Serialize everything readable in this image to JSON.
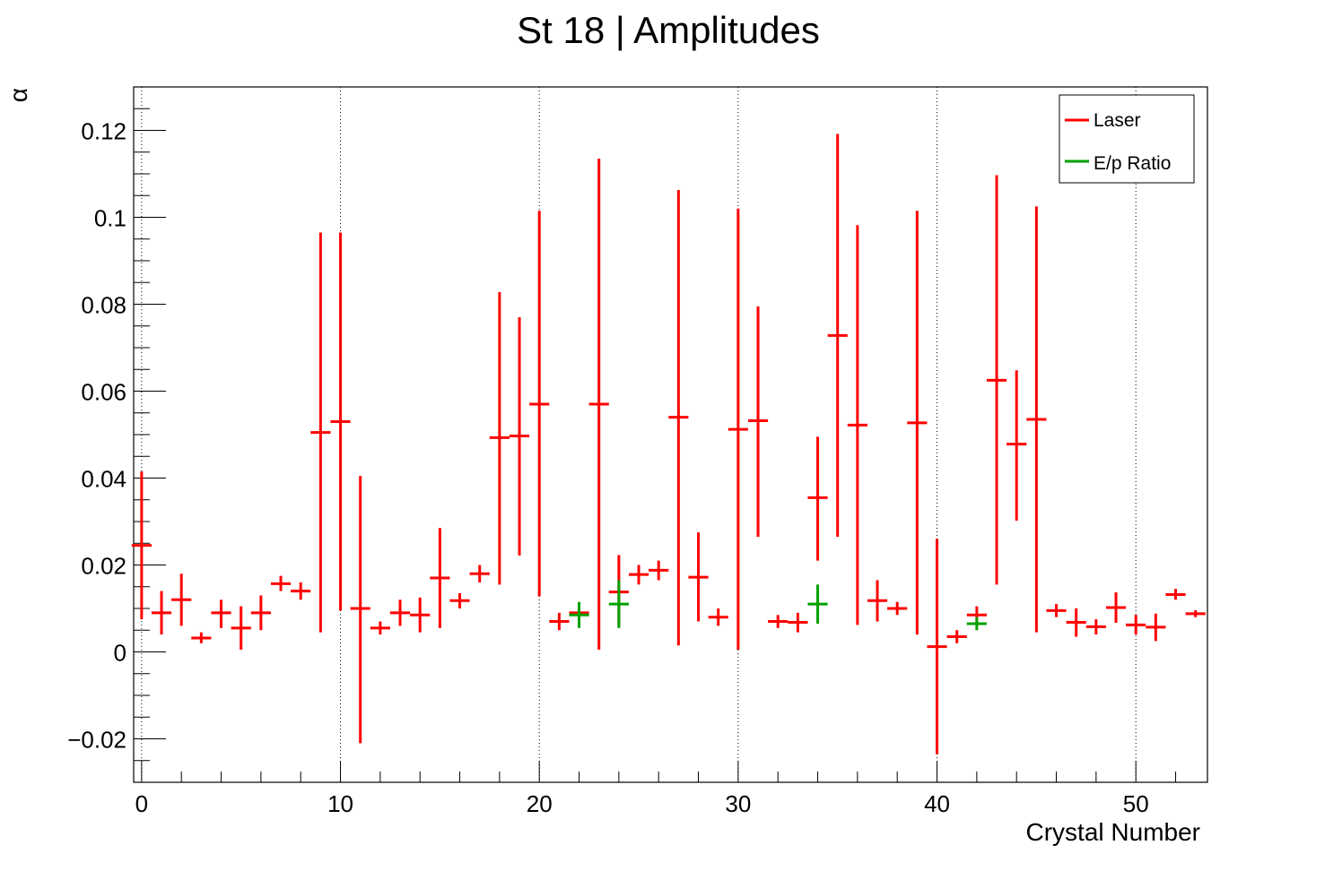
{
  "chart_data": {
    "type": "scatter",
    "title": "St 18 | Amplitudes",
    "xlabel": "Crystal Number",
    "ylabel": "α",
    "xlim": [
      -0.4,
      53.6
    ],
    "ylim": [
      -0.03,
      0.13
    ],
    "xticks": [
      0,
      10,
      20,
      30,
      40,
      50
    ],
    "yticks": [
      -0.02,
      0,
      0.02,
      0.04,
      0.06,
      0.08,
      0.1,
      0.12
    ],
    "xtick_labels": [
      "0",
      "10",
      "20",
      "30",
      "40",
      "50"
    ],
    "ytick_labels": [
      "−0.02",
      "0",
      "0.02",
      "0.04",
      "0.06",
      "0.08",
      "0.1",
      "0.12"
    ],
    "grid": "vertical-dotted",
    "legend": {
      "position": "top-right",
      "entries": [
        "Laser",
        "E/p Ratio"
      ]
    },
    "colors": {
      "Laser": "#ff0000",
      "E/p Ratio": "#00a000"
    },
    "series": [
      {
        "name": "Laser",
        "color": "#ff0000",
        "points": [
          {
            "x": 0,
            "y": 0.0245,
            "lo": 0.0075,
            "hi": 0.0415
          },
          {
            "x": 1,
            "y": 0.009,
            "lo": 0.004,
            "hi": 0.014
          },
          {
            "x": 2,
            "y": 0.012,
            "lo": 0.006,
            "hi": 0.018
          },
          {
            "x": 3,
            "y": 0.0032,
            "lo": 0.002,
            "hi": 0.0045
          },
          {
            "x": 4,
            "y": 0.009,
            "lo": 0.0055,
            "hi": 0.012
          },
          {
            "x": 5,
            "y": 0.0055,
            "lo": 0.0005,
            "hi": 0.0105
          },
          {
            "x": 6,
            "y": 0.009,
            "lo": 0.005,
            "hi": 0.013
          },
          {
            "x": 7,
            "y": 0.0157,
            "lo": 0.014,
            "hi": 0.0175
          },
          {
            "x": 8,
            "y": 0.014,
            "lo": 0.012,
            "hi": 0.016
          },
          {
            "x": 9,
            "y": 0.0505,
            "lo": 0.0045,
            "hi": 0.0965
          },
          {
            "x": 10,
            "y": 0.053,
            "lo": 0.0095,
            "hi": 0.0965
          },
          {
            "x": 11,
            "y": 0.01,
            "lo": -0.021,
            "hi": 0.0405
          },
          {
            "x": 12,
            "y": 0.0055,
            "lo": 0.004,
            "hi": 0.007
          },
          {
            "x": 13,
            "y": 0.009,
            "lo": 0.006,
            "hi": 0.012
          },
          {
            "x": 14,
            "y": 0.0085,
            "lo": 0.0045,
            "hi": 0.0125
          },
          {
            "x": 15,
            "y": 0.017,
            "lo": 0.0055,
            "hi": 0.0285
          },
          {
            "x": 16,
            "y": 0.0118,
            "lo": 0.01,
            "hi": 0.0135
          },
          {
            "x": 17,
            "y": 0.018,
            "lo": 0.016,
            "hi": 0.02
          },
          {
            "x": 18,
            "y": 0.0493,
            "lo": 0.0155,
            "hi": 0.0828
          },
          {
            "x": 19,
            "y": 0.0497,
            "lo": 0.0222,
            "hi": 0.077
          },
          {
            "x": 20,
            "y": 0.057,
            "lo": 0.0128,
            "hi": 0.1015
          },
          {
            "x": 21,
            "y": 0.007,
            "lo": 0.005,
            "hi": 0.009
          },
          {
            "x": 22,
            "y": 0.009,
            "lo": 0.0075,
            "hi": 0.0105
          },
          {
            "x": 23,
            "y": 0.057,
            "lo": 0.0005,
            "hi": 0.1135
          },
          {
            "x": 24,
            "y": 0.0138,
            "lo": 0.006,
            "hi": 0.0223
          },
          {
            "x": 25,
            "y": 0.0178,
            "lo": 0.0155,
            "hi": 0.02
          },
          {
            "x": 26,
            "y": 0.0188,
            "lo": 0.0165,
            "hi": 0.021
          },
          {
            "x": 27,
            "y": 0.054,
            "lo": 0.0015,
            "hi": 0.1063
          },
          {
            "x": 28,
            "y": 0.0172,
            "lo": 0.007,
            "hi": 0.0275
          },
          {
            "x": 29,
            "y": 0.008,
            "lo": 0.006,
            "hi": 0.01
          },
          {
            "x": 30,
            "y": 0.0512,
            "lo": 0.0005,
            "hi": 0.102
          },
          {
            "x": 31,
            "y": 0.0532,
            "lo": 0.0265,
            "hi": 0.0795
          },
          {
            "x": 32,
            "y": 0.007,
            "lo": 0.0055,
            "hi": 0.0085
          },
          {
            "x": 33,
            "y": 0.0068,
            "lo": 0.0045,
            "hi": 0.009
          },
          {
            "x": 34,
            "y": 0.0355,
            "lo": 0.021,
            "hi": 0.0495
          },
          {
            "x": 35,
            "y": 0.0728,
            "lo": 0.0265,
            "hi": 0.1192
          },
          {
            "x": 36,
            "y": 0.0522,
            "lo": 0.0062,
            "hi": 0.0982
          },
          {
            "x": 37,
            "y": 0.0118,
            "lo": 0.007,
            "hi": 0.0165
          },
          {
            "x": 38,
            "y": 0.01,
            "lo": 0.0085,
            "hi": 0.0115
          },
          {
            "x": 39,
            "y": 0.0527,
            "lo": 0.004,
            "hi": 0.1015
          },
          {
            "x": 40,
            "y": 0.0012,
            "lo": -0.0235,
            "hi": 0.026
          },
          {
            "x": 41,
            "y": 0.0035,
            "lo": 0.002,
            "hi": 0.005
          },
          {
            "x": 42,
            "y": 0.0085,
            "lo": 0.0065,
            "hi": 0.0105
          },
          {
            "x": 43,
            "y": 0.0625,
            "lo": 0.0155,
            "hi": 0.1097
          },
          {
            "x": 44,
            "y": 0.0478,
            "lo": 0.0302,
            "hi": 0.0648
          },
          {
            "x": 45,
            "y": 0.0535,
            "lo": 0.0045,
            "hi": 0.1025
          },
          {
            "x": 46,
            "y": 0.0095,
            "lo": 0.008,
            "hi": 0.011
          },
          {
            "x": 47,
            "y": 0.0068,
            "lo": 0.0035,
            "hi": 0.01
          },
          {
            "x": 48,
            "y": 0.0058,
            "lo": 0.004,
            "hi": 0.0075
          },
          {
            "x": 49,
            "y": 0.0102,
            "lo": 0.0067,
            "hi": 0.0137
          },
          {
            "x": 50,
            "y": 0.0062,
            "lo": 0.004,
            "hi": 0.0085
          },
          {
            "x": 51,
            "y": 0.0057,
            "lo": 0.0025,
            "hi": 0.0088
          },
          {
            "x": 52,
            "y": 0.0132,
            "lo": 0.012,
            "hi": 0.0145
          },
          {
            "x": 53,
            "y": 0.0088,
            "lo": 0.008,
            "hi": 0.0096
          }
        ]
      },
      {
        "name": "E/p Ratio",
        "color": "#00a000",
        "points": [
          {
            "x": 22,
            "y": 0.0085,
            "lo": 0.0055,
            "hi": 0.0115
          },
          {
            "x": 24,
            "y": 0.011,
            "lo": 0.0055,
            "hi": 0.0165
          },
          {
            "x": 34,
            "y": 0.011,
            "lo": 0.0065,
            "hi": 0.0155
          },
          {
            "x": 42,
            "y": 0.0065,
            "lo": 0.005,
            "hi": 0.008
          }
        ]
      }
    ]
  }
}
